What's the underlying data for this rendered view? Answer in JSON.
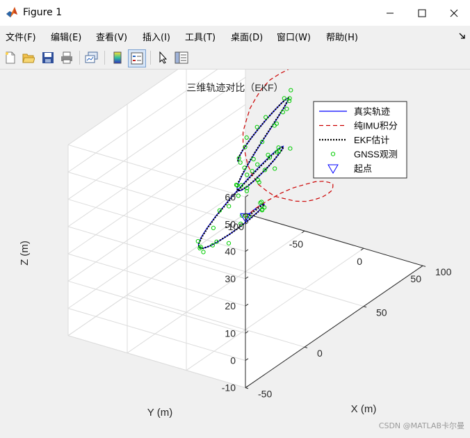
{
  "window": {
    "title": "Figure 1"
  },
  "menu": [
    "文件(F)",
    "编辑(E)",
    "查看(V)",
    "插入(I)",
    "工具(T)",
    "桌面(D)",
    "窗口(W)",
    "帮助(H)"
  ],
  "icons": {
    "app": "matlab-logo-icon",
    "minimize": "minimize-icon",
    "maximize": "maximize-icon",
    "close": "close-icon",
    "dock": "dock-arrow-icon",
    "toolbar": [
      "new-figure-icon",
      "open-file-icon",
      "save-icon",
      "print-icon",
      "link-plot-icon",
      "insert-colorbar-icon",
      "insert-legend-icon",
      "pointer-icon",
      "property-inspector-icon"
    ]
  },
  "chart_data": {
    "type": "line",
    "projection": "3d",
    "title": "三维轨迹对比（EKF）",
    "xlabel": "X (m)",
    "ylabel": "Y (m)",
    "zlabel": "Z (m)",
    "xlim": [
      -50,
      100
    ],
    "ylim": [
      -100,
      50
    ],
    "zlim": [
      -10,
      60
    ],
    "xticks": [
      "-50",
      "0",
      "50",
      "100"
    ],
    "yticks": [
      "50",
      "0",
      "-50",
      "-100"
    ],
    "zticks": [
      "-10",
      "0",
      "10",
      "20",
      "30",
      "40",
      "50",
      "60"
    ],
    "grid": true,
    "legend_position": "top-right",
    "series": [
      {
        "name": "真实轨迹",
        "style": "solid",
        "color": "#0000ff",
        "x": [
          50.0,
          55.5,
          59.5,
          60.5,
          58.4,
          53.3,
          45.6,
          36.1,
          25.5,
          14.6,
          4.5,
          -4.0,
          -9.9,
          -12.6,
          -11.7,
          -7.1,
          0.7,
          10.9,
          22.6,
          34.9,
          46.7,
          57.2,
          65.7,
          71.5,
          74.2,
          73.7,
          69.9,
          63.3,
          54.6,
          44.5,
          34.1,
          24.3,
          16.0,
          10.0,
          6.8,
          6.7,
          9.8,
          15.9,
          24.4,
          34.7,
          45.8,
          56.7,
          66.3,
          73.7,
          78.0,
          78.8,
          76.0,
          69.7,
          60.3,
          48.6,
          35.7,
          22.6,
          10.6,
          1.0,
          -5.7
        ],
        "y": [
          -50.0,
          -49.3,
          -47.7,
          -45.3,
          -42.4,
          -39.1,
          -35.8,
          -32.7,
          -29.9,
          -27.7,
          -26.1,
          -25.4,
          -25.5,
          -26.4,
          -28.1,
          -30.5,
          -33.3,
          -36.3,
          -39.3,
          -42.0,
          -44.2,
          -45.7,
          -46.3,
          -45.9,
          -44.3,
          -41.7,
          -38.3,
          -34.3,
          -29.8,
          -25.4,
          -21.3,
          -17.7,
          -15.0,
          -13.4,
          -13.0,
          -13.8,
          -15.7,
          -18.6,
          -22.3,
          -26.5,
          -30.8,
          -34.8,
          -38.3,
          -40.9,
          -42.3,
          -42.5,
          -41.3,
          -38.7,
          -34.9,
          -30.1,
          -24.5,
          -18.4,
          -12.2,
          -6.3,
          -0.8
        ],
        "z": [
          10.0,
          10.8,
          11.6,
          12.4,
          13.2,
          14.0,
          14.8,
          15.6,
          16.4,
          17.2,
          18.0,
          18.8,
          19.6,
          20.4,
          21.2,
          22.0,
          22.8,
          23.6,
          24.4,
          25.2,
          26.0,
          26.8,
          27.6,
          28.4,
          29.2,
          30.0,
          30.8,
          31.6,
          32.4,
          33.2,
          34.0,
          34.8,
          35.6,
          36.4,
          37.2,
          38.0,
          38.8,
          39.6,
          40.4,
          41.2,
          42.0,
          42.8,
          43.6,
          44.4,
          45.2,
          46.0,
          46.8,
          47.6,
          48.4,
          49.2,
          50.0,
          50.8,
          51.6,
          52.4,
          53.2
        ]
      },
      {
        "name": "纯IMU积分",
        "style": "dashed",
        "color": "#cc0000",
        "x": [
          50,
          57,
          63,
          69,
          73,
          76,
          77,
          76,
          73,
          69,
          63,
          56,
          49,
          41,
          33,
          26,
          20,
          16,
          12,
          11,
          11,
          14,
          18,
          23,
          29,
          35,
          43,
          50,
          57,
          63,
          69,
          73,
          76,
          77,
          76,
          73,
          69,
          63,
          56,
          49,
          41,
          33,
          26,
          20,
          16,
          12,
          11,
          11,
          14,
          18,
          23,
          29,
          35,
          43
        ],
        "y": [
          -50,
          -48,
          -44,
          -39,
          -33,
          -25,
          -18,
          -10,
          -2,
          5,
          11,
          17,
          21,
          24,
          25,
          25,
          22,
          18,
          13,
          7,
          0,
          -8,
          -16,
          -23,
          -31,
          -37,
          -42,
          -46,
          -48,
          -49,
          -48,
          -44,
          -39,
          -33,
          -25,
          -18,
          -10,
          -2,
          5,
          11,
          17,
          21,
          24,
          25,
          25,
          22,
          18,
          13,
          7,
          0,
          -8,
          -16,
          -23,
          -31
        ],
        "z": [
          10,
          11.5,
          13,
          14.5,
          16,
          17.5,
          19,
          20.5,
          22,
          23.5,
          25,
          26.5,
          28,
          29.5,
          31,
          32.5,
          34,
          35.5,
          37,
          38.5,
          40,
          41.5,
          43,
          44.5,
          46,
          47.5,
          49,
          50.5,
          52,
          53.5,
          55,
          56.5,
          58,
          59.5,
          61,
          62.5,
          64,
          65.5,
          67,
          68.5,
          70,
          71.5,
          73,
          74.5,
          76,
          77.5,
          79,
          80.5,
          82,
          83.5,
          85,
          86.5,
          88,
          89.5
        ]
      },
      {
        "name": "EKF估计",
        "style": "dotted",
        "color": "#000000",
        "x": [
          49.0,
          55.0,
          59.3,
          60.4,
          58.7,
          53.9,
          46.2,
          36.6,
          25.7,
          14.7,
          4.3,
          -4.4,
          -10.1,
          -12.6,
          -11.4,
          -6.6,
          1.3,
          11.4,
          23.2,
          35.4,
          47.2,
          57.7,
          66.2,
          71.9,
          74.6,
          73.7,
          69.6,
          62.8,
          54.0,
          43.9,
          33.6,
          23.9,
          15.8,
          9.9,
          6.9,
          6.9,
          10.1,
          16.3,
          24.9,
          35.2,
          46.3,
          57.1,
          66.6,
          73.8,
          78.0,
          78.7,
          75.8,
          69.5,
          60.0,
          48.2,
          35.3,
          22.2,
          10.2,
          0.8,
          -5.8
        ],
        "y": [
          -49.0,
          -48.9,
          -47.5,
          -45.3,
          -42.6,
          -39.4,
          -36.1,
          -33.0,
          -30.2,
          -28.0,
          -26.4,
          -25.6,
          -25.6,
          -26.5,
          -28.2,
          -30.4,
          -33.2,
          -36.2,
          -39.1,
          -41.8,
          -44.0,
          -45.5,
          -46.1,
          -45.7,
          -44.2,
          -41.6,
          -38.2,
          -34.2,
          -29.8,
          -25.4,
          -21.4,
          -17.9,
          -15.3,
          -13.7,
          -13.3,
          -14.1,
          -16.1,
          -19.0,
          -22.7,
          -26.9,
          -31.1,
          -35.1,
          -38.5,
          -41.0,
          -42.4,
          -42.5,
          -41.2,
          -38.6,
          -34.8,
          -30.0,
          -24.4,
          -18.3,
          -12.1,
          -6.3,
          -0.8
        ],
        "z": [
          9.5,
          10.4,
          11.2,
          12.0,
          12.9,
          13.7,
          14.6,
          15.4,
          16.2,
          17.1,
          18.0,
          18.8,
          19.6,
          20.4,
          21.2,
          22.0,
          22.8,
          23.6,
          24.4,
          25.1,
          25.9,
          26.7,
          27.5,
          28.2,
          29.0,
          29.8,
          30.6,
          31.5,
          32.3,
          33.1,
          34.0,
          34.8,
          35.6,
          36.5,
          37.3,
          38.1,
          38.9,
          39.7,
          40.5,
          41.3,
          42.1,
          42.9,
          43.7,
          44.4,
          45.2,
          46.0,
          46.8,
          47.6,
          48.4,
          49.2,
          50.0,
          50.8,
          51.6,
          52.4,
          53.2
        ]
      },
      {
        "name": "GNSS观测",
        "style": "markers",
        "marker": "circle",
        "color": "#00cc00",
        "x": [
          53.7,
          50.3,
          60.9,
          58.8,
          57.5,
          53.5,
          52.1,
          37.6,
          25.2,
          9.4,
          4.6,
          -3.2,
          -9.3,
          -14.2,
          -10.7,
          -11.8,
          3.9,
          14.0,
          24.2,
          32.6,
          45.5,
          56.6,
          65.2,
          70.9,
          68.1,
          74.9,
          68.8,
          65.7,
          53.2,
          42.8,
          29.5,
          27.6,
          15.1,
          12.7,
          8.3,
          8.9,
          6.2,
          20.9,
          19.2,
          30.9,
          45.6,
          59.5,
          63.3,
          76.9,
          77.2,
          82.3,
          80.0,
          68.7,
          65.0,
          46.6,
          35.5,
          22.1,
          10.3,
          1.2,
          -3.8
        ],
        "y": [
          -53.5,
          -53.2,
          -46.8,
          -46.2,
          -43.9,
          -37.5,
          -37.8,
          -34.8,
          -29.2,
          -23.5,
          -29.0,
          -24.5,
          -28.5,
          -21.4,
          -29.4,
          -26.8,
          -31.0,
          -35.8,
          -38.2,
          -38.6,
          -44.2,
          -46.5,
          -46.1,
          -44.4,
          -47.5,
          -37.0,
          -40.8,
          -37.5,
          -28.4,
          -26.3,
          -17.9,
          -17.0,
          -13.7,
          -11.6,
          -11.8,
          -16.6,
          -13.2,
          -15.2,
          -20.0,
          -24.0,
          -31.4,
          -34.9,
          -36.9,
          -39.5,
          -44.4,
          -45.2,
          -41.6,
          -37.0,
          -30.0,
          -29.4,
          -25.7,
          -21.1,
          -10.6,
          -6.7,
          -0.5
        ],
        "z": [
          8.9,
          10.1,
          9.7,
          13.1,
          14.1,
          14.1,
          13.8,
          16.0,
          17.6,
          15.9,
          17.2,
          18.8,
          19.5,
          20.0,
          21.9,
          20.0,
          22.2,
          25.0,
          23.2,
          24.5,
          27.6,
          27.8,
          28.8,
          28.3,
          26.8,
          29.4,
          31.1,
          31.1,
          29.6,
          32.5,
          33.0,
          34.5,
          35.7,
          35.6,
          39.0,
          38.4,
          39.4,
          40.0,
          41.1,
          40.3,
          41.3,
          42.7,
          42.0,
          46.9,
          46.2,
          43.6,
          48.7,
          44.6,
          47.8,
          50.3,
          50.5,
          51.2,
          52.6,
          51.7,
          52.4
        ]
      },
      {
        "name": "起点",
        "style": "marker",
        "marker": "triangle-down",
        "color": "#0000ff",
        "x": [
          50.0
        ],
        "y": [
          -50.0
        ],
        "z": [
          10.0
        ]
      }
    ]
  },
  "watermark": "CSDN @MATLAB卡尔曼"
}
